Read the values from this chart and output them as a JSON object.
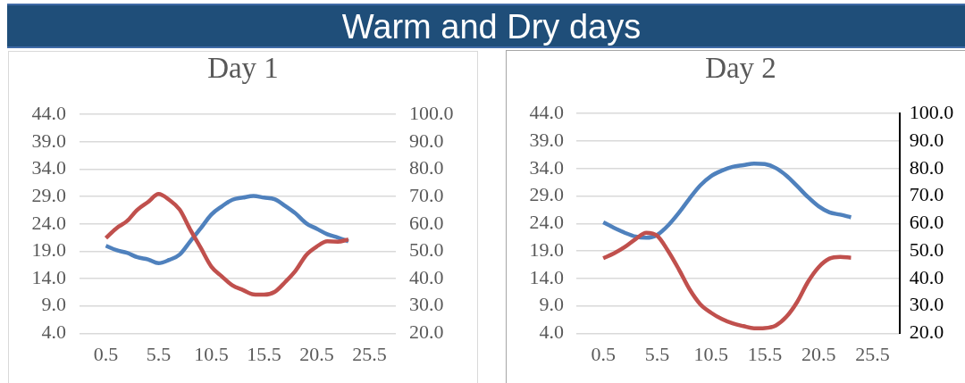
{
  "chart_data": [
    {
      "type": "line",
      "title": "Warm and Dry days",
      "subtitle": "Day 1",
      "x": [
        0.5,
        1.5,
        2.5,
        3.5,
        4.5,
        5.5,
        6.5,
        7.5,
        8.5,
        9.5,
        10.5,
        11.5,
        12.5,
        13.5,
        14.5,
        15.5,
        16.5,
        17.5,
        18.5,
        19.5,
        20.5,
        21.5,
        22.5,
        23.5
      ],
      "xlim": [
        -2,
        28
      ],
      "xticks": [
        0.5,
        5.5,
        10.5,
        15.5,
        20.5,
        25.5
      ],
      "ylim": [
        4,
        44
      ],
      "yticks": [
        {
          "value": 4,
          "label": "4.0"
        },
        {
          "value": 9,
          "label": "9.0"
        },
        {
          "value": 14,
          "label": "14.0"
        },
        {
          "value": 19,
          "label": "19.0"
        },
        {
          "value": 24,
          "label": "24.0"
        },
        {
          "value": 29,
          "label": "29.0"
        },
        {
          "value": 34,
          "label": "34.0"
        },
        {
          "value": 39,
          "label": "39.0"
        },
        {
          "value": 44,
          "label": "44.0"
        }
      ],
      "y2lim": [
        20,
        100
      ],
      "y2ticks": [
        {
          "value": 20,
          "label": "20.0"
        },
        {
          "value": 30,
          "label": "30.0"
        },
        {
          "value": 40,
          "label": "40.0"
        },
        {
          "value": 50,
          "label": "50.0"
        },
        {
          "value": 60,
          "label": "60.0"
        },
        {
          "value": 70,
          "label": "70.0"
        },
        {
          "value": 80,
          "label": "80.0"
        },
        {
          "value": 90,
          "label": "90.0"
        },
        {
          "value": 100,
          "label": "100.0"
        }
      ],
      "grid": "y",
      "series": [
        {
          "color": "#4f81bd",
          "values": [
            20.0,
            19.2,
            18.7,
            17.9,
            17.5,
            16.8,
            17.4,
            18.4,
            20.8,
            23.2,
            25.7,
            27.2,
            28.4,
            28.8,
            29.1,
            28.8,
            28.5,
            27.3,
            25.9,
            24.1,
            23.1,
            22.1,
            21.5,
            20.8
          ]
        },
        {
          "color": "#c0504d",
          "axis": "y2",
          "values": [
            54.8,
            58.4,
            61.0,
            65.2,
            68.0,
            70.9,
            68.8,
            65.2,
            57.9,
            51.2,
            44.4,
            40.8,
            37.5,
            35.8,
            34.2,
            34.1,
            35.1,
            38.7,
            42.9,
            48.6,
            51.7,
            53.6,
            53.5,
            54.3
          ]
        }
      ]
    },
    {
      "type": "line",
      "title": "Day 2",
      "x": [
        0.5,
        1.5,
        2.5,
        3.5,
        4.5,
        5.5,
        6.5,
        7.5,
        8.5,
        9.5,
        10.5,
        11.5,
        12.5,
        13.5,
        14.5,
        15.5,
        16.5,
        17.5,
        18.5,
        19.5,
        20.5,
        21.5,
        22.5,
        23.5
      ],
      "xlim": [
        -2,
        28
      ],
      "xticks": [
        0.5,
        5.5,
        10.5,
        15.5,
        20.5,
        25.5
      ],
      "ylim": [
        4,
        44
      ],
      "yticks": [
        {
          "value": 4,
          "label": "4.0"
        },
        {
          "value": 9,
          "label": "9.0"
        },
        {
          "value": 14,
          "label": "14.0"
        },
        {
          "value": 19,
          "label": "19.0"
        },
        {
          "value": 24,
          "label": "24.0"
        },
        {
          "value": 29,
          "label": "29.0"
        },
        {
          "value": 34,
          "label": "34.0"
        },
        {
          "value": 39,
          "label": "39.0"
        },
        {
          "value": 44,
          "label": "44.0"
        }
      ],
      "y2lim": [
        20,
        100
      ],
      "y2ticks": [
        {
          "value": 20,
          "label": "20.0"
        },
        {
          "value": 30,
          "label": "30.0"
        },
        {
          "value": 40,
          "label": "40.0"
        },
        {
          "value": 50,
          "label": "50.0"
        },
        {
          "value": 60,
          "label": "60.0"
        },
        {
          "value": 70,
          "label": "70.0"
        },
        {
          "value": 80,
          "label": "80.0"
        },
        {
          "value": 90,
          "label": "90.0"
        },
        {
          "value": 100,
          "label": "100.0"
        }
      ],
      "grid": "y",
      "series": [
        {
          "color": "#4f81bd",
          "values": [
            24.2,
            23.2,
            22.3,
            21.6,
            21.4,
            21.9,
            23.6,
            25.9,
            28.5,
            30.9,
            32.6,
            33.6,
            34.3,
            34.6,
            34.9,
            34.8,
            34.1,
            32.7,
            30.8,
            28.8,
            27.1,
            26.0,
            25.6,
            25.1
          ]
        },
        {
          "color": "#c0504d",
          "axis": "y2",
          "values": [
            47.3,
            49.1,
            51.4,
            54.3,
            56.6,
            55.5,
            50.1,
            43.4,
            36.1,
            30.6,
            27.5,
            25.2,
            23.6,
            22.6,
            21.8,
            21.9,
            22.8,
            26.0,
            31.4,
            38.7,
            44.1,
            47.2,
            47.8,
            47.5
          ]
        }
      ]
    }
  ]
}
